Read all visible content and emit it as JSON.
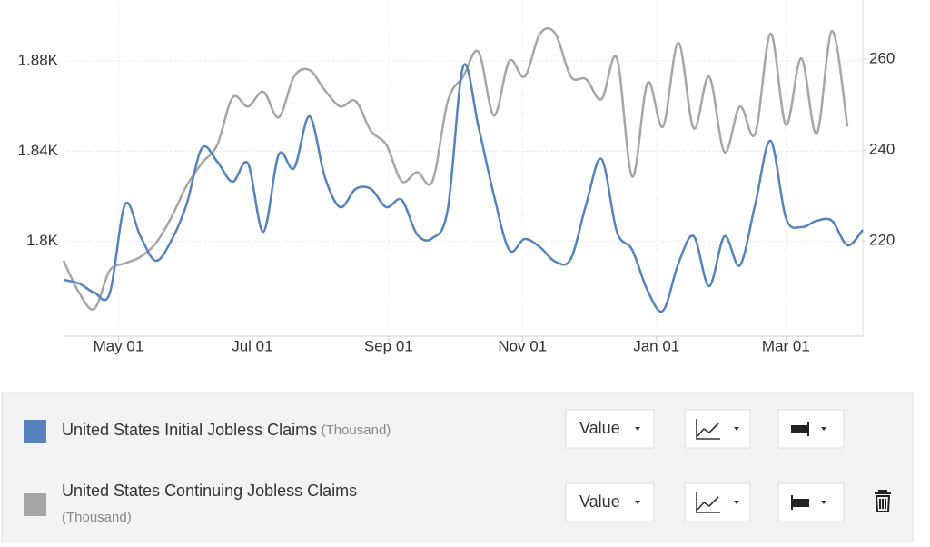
{
  "chart_data": {
    "type": "line",
    "x": [
      "Apr 06",
      "Apr 13",
      "Apr 20",
      "Apr 27",
      "May 04",
      "May 11",
      "May 18",
      "May 25",
      "Jun 01",
      "Jun 08",
      "Jun 15",
      "Jun 22",
      "Jun 29",
      "Jul 06",
      "Jul 13",
      "Jul 20",
      "Jul 27",
      "Aug 03",
      "Aug 10",
      "Aug 17",
      "Aug 24",
      "Aug 31",
      "Sep 07",
      "Sep 14",
      "Sep 21",
      "Sep 28",
      "Oct 05",
      "Oct 12",
      "Oct 19",
      "Oct 26",
      "Nov 02",
      "Nov 09",
      "Nov 16",
      "Nov 23",
      "Nov 30",
      "Dec 07",
      "Dec 14",
      "Dec 21",
      "Dec 28",
      "Jan 04",
      "Jan 11",
      "Jan 18",
      "Jan 25",
      "Feb 01",
      "Feb 08",
      "Feb 15",
      "Feb 22",
      "Mar 01",
      "Mar 08",
      "Mar 15",
      "Mar 22",
      "Mar 29",
      "Apr 05"
    ],
    "xlim": [
      "Apr 06",
      "Apr 05"
    ],
    "xticks": [
      "May 01",
      "Jul 01",
      "Sep 01",
      "Nov 01",
      "Jan 01",
      "Mar 01"
    ],
    "ylim": [
      1758,
      1907
    ],
    "yticks": [
      {
        "value": 1800,
        "label": "1.8K"
      },
      {
        "value": 1840,
        "label": "1.84K"
      },
      {
        "value": 1880,
        "label": "1.88K"
      }
    ],
    "y2lim": [
      199,
      273
    ],
    "y2ticks": [
      220,
      240,
      260
    ],
    "grid": true,
    "series": [
      {
        "name": "United States Initial Jobless Claims",
        "unit": "(Thousand)",
        "display": "Value",
        "color": "#5783bd",
        "axis": "y2",
        "values": [
          211.4,
          210.6,
          208.6,
          208.4,
          228,
          221,
          215.6,
          220,
          228,
          240.4,
          237.4,
          233,
          237,
          222,
          239,
          236,
          247.4,
          234,
          227.4,
          231.4,
          231.4,
          227.4,
          229,
          221.4,
          220.6,
          227,
          258.4,
          245,
          230,
          218,
          220.4,
          218.6,
          215.4,
          216,
          228,
          238,
          222,
          218,
          209,
          204.6,
          215,
          221,
          210,
          221,
          214.6,
          228,
          242,
          225,
          223,
          224.4,
          224.4,
          219,
          222.4
        ]
      },
      {
        "name": "United States Continuing Jobless Claims",
        "unit": "(Thousand)",
        "display": "Value",
        "color": "#a6a6a6",
        "axis": "y",
        "values": [
          1791.5,
          1777.4,
          1770.1,
          1787.1,
          1790.3,
          1793.1,
          1799.2,
          1810.5,
          1824.6,
          1834.7,
          1842.8,
          1863.8,
          1859.8,
          1866.3,
          1855,
          1873.1,
          1876,
          1867,
          1859.8,
          1862.2,
          1848.9,
          1842.8,
          1826.7,
          1830.7,
          1826.7,
          1862.2,
          1873.1,
          1884,
          1855.8,
          1880,
          1873.1,
          1892.1,
          1892.1,
          1873.1,
          1871.9,
          1863,
          1881.2,
          1828.7,
          1870.3,
          1850.9,
          1888.1,
          1850.1,
          1873.1,
          1839.6,
          1859.8,
          1847.7,
          1892.1,
          1851.7,
          1881.2,
          1847.7,
          1893.3,
          1850.9,
          null
        ]
      }
    ]
  }
}
